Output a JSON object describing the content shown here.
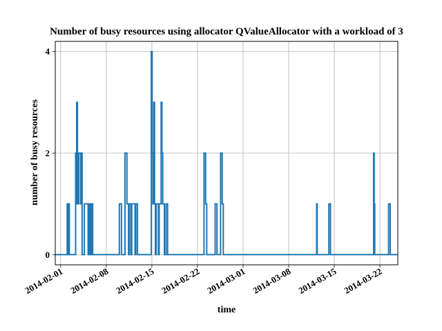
{
  "chart_data": {
    "type": "line",
    "title": "Number of busy resources using allocator QValueAllocator with a workload of 3",
    "xlabel": "time",
    "ylabel": "number of busy resources",
    "x_type": "date",
    "xlim": [
      "2014-01-31T04:00",
      "2014-03-24T18:00"
    ],
    "ylim": [
      -0.2,
      4.2
    ],
    "x_ticks": [
      "2014-02-01",
      "2014-02-08",
      "2014-02-15",
      "2014-02-22",
      "2014-03-01",
      "2014-03-08",
      "2014-03-15",
      "2014-03-22"
    ],
    "y_ticks": [
      0,
      2,
      4
    ],
    "grid": true,
    "line_color": "#1f77b4",
    "series": [
      {
        "points": [
          [
            "2014-02-02T00:00",
            0
          ],
          [
            "2014-02-02T00:00",
            1
          ],
          [
            "2014-02-02T03:00",
            1
          ],
          [
            "2014-02-02T03:00",
            0
          ],
          [
            "2014-02-02T05:00",
            0
          ],
          [
            "2014-02-02T05:00",
            1
          ],
          [
            "2014-02-02T08:00",
            1
          ],
          [
            "2014-02-02T08:00",
            0
          ],
          [
            "2014-02-03T07:00",
            0
          ],
          [
            "2014-02-03T07:00",
            2
          ],
          [
            "2014-02-03T09:00",
            2
          ],
          [
            "2014-02-03T09:00",
            1
          ],
          [
            "2014-02-03T11:00",
            1
          ],
          [
            "2014-02-03T11:00",
            3
          ],
          [
            "2014-02-03T14:00",
            3
          ],
          [
            "2014-02-03T14:00",
            1
          ],
          [
            "2014-02-03T19:00",
            1
          ],
          [
            "2014-02-03T19:00",
            2
          ],
          [
            "2014-02-04T02:00",
            2
          ],
          [
            "2014-02-04T02:00",
            1
          ],
          [
            "2014-02-04T04:00",
            1
          ],
          [
            "2014-02-04T04:00",
            2
          ],
          [
            "2014-02-04T07:00",
            2
          ],
          [
            "2014-02-04T07:00",
            0
          ],
          [
            "2014-02-04T15:00",
            0
          ],
          [
            "2014-02-04T15:00",
            1
          ],
          [
            "2014-02-05T05:00",
            1
          ],
          [
            "2014-02-05T05:00",
            0
          ],
          [
            "2014-02-05T08:00",
            0
          ],
          [
            "2014-02-05T08:00",
            1
          ],
          [
            "2014-02-05T12:00",
            1
          ],
          [
            "2014-02-05T12:00",
            0
          ],
          [
            "2014-02-05T17:00",
            0
          ],
          [
            "2014-02-05T17:00",
            1
          ],
          [
            "2014-02-05T22:00",
            1
          ],
          [
            "2014-02-05T22:00",
            0
          ],
          [
            "2014-02-10T00:00",
            0
          ],
          [
            "2014-02-10T00:00",
            1
          ],
          [
            "2014-02-10T08:00",
            1
          ],
          [
            "2014-02-10T08:00",
            0
          ],
          [
            "2014-02-10T21:00",
            0
          ],
          [
            "2014-02-10T21:00",
            2
          ],
          [
            "2014-02-11T04:00",
            2
          ],
          [
            "2014-02-11T04:00",
            1
          ],
          [
            "2014-02-11T10:00",
            1
          ],
          [
            "2014-02-11T10:00",
            0
          ],
          [
            "2014-02-11T13:00",
            0
          ],
          [
            "2014-02-11T13:00",
            1
          ],
          [
            "2014-02-11T19:00",
            1
          ],
          [
            "2014-02-11T19:00",
            0
          ],
          [
            "2014-02-11T22:00",
            0
          ],
          [
            "2014-02-11T22:00",
            1
          ],
          [
            "2014-02-12T10:00",
            1
          ],
          [
            "2014-02-12T10:00",
            0
          ],
          [
            "2014-02-12T13:00",
            0
          ],
          [
            "2014-02-12T13:00",
            1
          ],
          [
            "2014-02-12T19:00",
            1
          ],
          [
            "2014-02-12T19:00",
            0
          ],
          [
            "2014-02-14T22:00",
            0
          ],
          [
            "2014-02-14T22:00",
            4
          ],
          [
            "2014-02-15T01:00",
            4
          ],
          [
            "2014-02-15T01:00",
            2
          ],
          [
            "2014-02-15T04:00",
            2
          ],
          [
            "2014-02-15T04:00",
            1
          ],
          [
            "2014-02-15T07:00",
            1
          ],
          [
            "2014-02-15T07:00",
            3
          ],
          [
            "2014-02-15T10:00",
            3
          ],
          [
            "2014-02-15T10:00",
            1
          ],
          [
            "2014-02-15T13:00",
            1
          ],
          [
            "2014-02-15T13:00",
            0
          ],
          [
            "2014-02-15T16:00",
            0
          ],
          [
            "2014-02-15T16:00",
            1
          ],
          [
            "2014-02-16T00:00",
            1
          ],
          [
            "2014-02-16T00:00",
            0
          ],
          [
            "2014-02-16T03:00",
            0
          ],
          [
            "2014-02-16T03:00",
            1
          ],
          [
            "2014-02-16T10:00",
            1
          ],
          [
            "2014-02-16T10:00",
            3
          ],
          [
            "2014-02-16T13:00",
            3
          ],
          [
            "2014-02-16T13:00",
            2
          ],
          [
            "2014-02-16T16:00",
            2
          ],
          [
            "2014-02-16T16:00",
            1
          ],
          [
            "2014-02-16T22:00",
            1
          ],
          [
            "2014-02-16T22:00",
            0
          ],
          [
            "2014-02-17T04:00",
            0
          ],
          [
            "2014-02-17T04:00",
            1
          ],
          [
            "2014-02-17T10:00",
            1
          ],
          [
            "2014-02-17T10:00",
            0
          ],
          [
            "2014-02-23T00:00",
            0
          ],
          [
            "2014-02-23T00:00",
            2
          ],
          [
            "2014-02-23T06:00",
            2
          ],
          [
            "2014-02-23T06:00",
            1
          ],
          [
            "2014-02-23T10:00",
            1
          ],
          [
            "2014-02-23T10:00",
            0
          ],
          [
            "2014-02-24T17:00",
            0
          ],
          [
            "2014-02-24T17:00",
            1
          ],
          [
            "2014-02-25T00:00",
            1
          ],
          [
            "2014-02-25T00:00",
            0
          ],
          [
            "2014-02-25T13:00",
            0
          ],
          [
            "2014-02-25T13:00",
            2
          ],
          [
            "2014-02-25T19:00",
            2
          ],
          [
            "2014-02-25T19:00",
            1
          ],
          [
            "2014-02-25T23:00",
            1
          ],
          [
            "2014-02-25T23:00",
            0
          ],
          [
            "2014-03-12T07:00",
            0
          ],
          [
            "2014-03-12T07:00",
            1
          ],
          [
            "2014-03-12T09:00",
            1
          ],
          [
            "2014-03-12T09:00",
            0
          ],
          [
            "2014-03-14T04:00",
            0
          ],
          [
            "2014-03-14T04:00",
            1
          ],
          [
            "2014-03-14T10:00",
            1
          ],
          [
            "2014-03-14T10:00",
            0
          ],
          [
            "2014-03-21T01:00",
            0
          ],
          [
            "2014-03-21T01:00",
            2
          ],
          [
            "2014-03-21T03:00",
            2
          ],
          [
            "2014-03-21T03:00",
            1
          ],
          [
            "2014-03-21T05:00",
            1
          ],
          [
            "2014-03-21T05:00",
            0
          ],
          [
            "2014-03-23T08:00",
            0
          ],
          [
            "2014-03-23T08:00",
            1
          ],
          [
            "2014-03-23T14:00",
            1
          ],
          [
            "2014-03-23T14:00",
            0
          ]
        ]
      }
    ]
  }
}
